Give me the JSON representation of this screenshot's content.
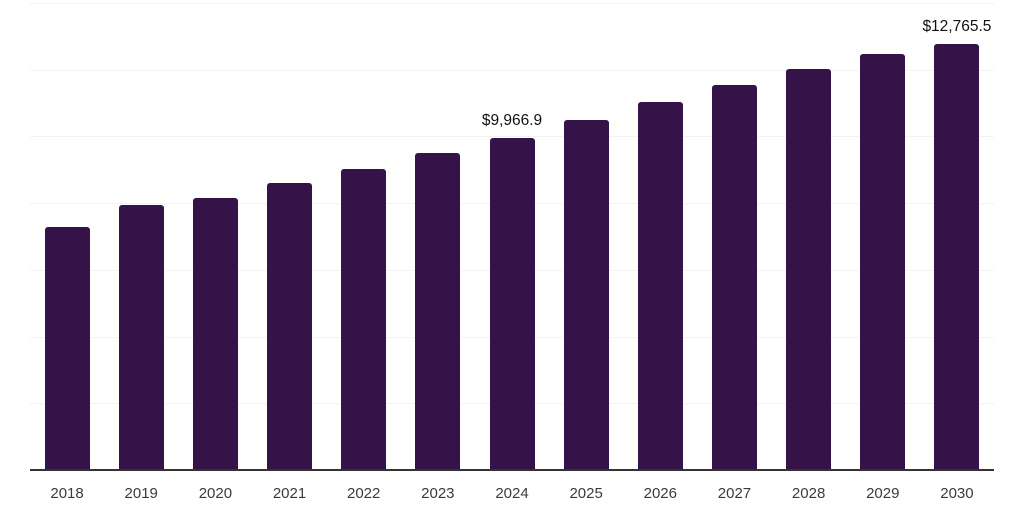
{
  "chart_data": {
    "type": "bar",
    "title": "",
    "xlabel": "",
    "ylabel": "",
    "categories": [
      "2018",
      "2019",
      "2020",
      "2021",
      "2022",
      "2023",
      "2024",
      "2025",
      "2026",
      "2027",
      "2028",
      "2029",
      "2030"
    ],
    "values": [
      7270,
      7940,
      8160,
      8590,
      9010,
      9500,
      9966.9,
      10490,
      11020,
      11540,
      12030,
      12480,
      12765.5
    ],
    "data_labels": {
      "2024": "$9,966.9",
      "2030": "$12,765.5"
    },
    "ylim": [
      0,
      14000
    ],
    "gridline_step": 2000,
    "grid": "horizontal",
    "legend": "none",
    "y_axis_tick_labels_visible": false,
    "colors": {
      "bar": "#351349",
      "axis_line": "#333333",
      "gridline": "#F3F3F4",
      "tick_label": "#3B3B3B",
      "data_label": "#121212",
      "background": "#FFFFFF"
    }
  }
}
